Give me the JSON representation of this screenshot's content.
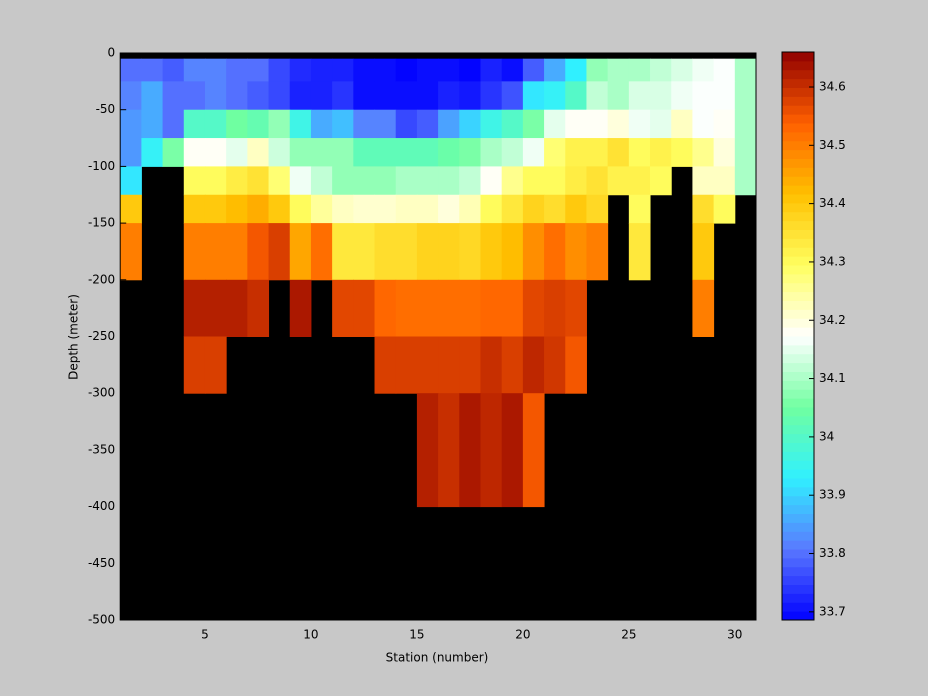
{
  "chart_data": {
    "type": "heatmap",
    "xlabel": "Station (number)",
    "ylabel": "Depth (meter)",
    "x_edges": [
      1,
      2,
      3,
      4,
      5,
      6,
      7,
      8,
      9,
      10,
      11,
      12,
      13,
      14,
      15,
      16,
      17,
      18,
      19,
      20,
      21,
      22,
      23,
      24,
      25,
      26,
      27,
      28,
      29,
      30,
      31
    ],
    "y_edges": [
      -5,
      -25,
      -50,
      -75,
      -100,
      -125,
      -150,
      -200,
      -250,
      -300,
      -400,
      -500
    ],
    "z": [
      [
        33.8,
        33.8,
        33.78,
        33.82,
        33.82,
        33.8,
        33.8,
        33.76,
        33.73,
        33.72,
        33.72,
        33.7,
        33.7,
        33.69,
        33.7,
        33.7,
        33.69,
        33.72,
        33.7,
        33.78,
        33.86,
        33.93,
        34.08,
        34.1,
        34.1,
        34.12,
        34.14,
        34.16,
        34.17,
        34.1
      ],
      [
        33.82,
        33.86,
        33.8,
        33.8,
        33.82,
        33.8,
        33.78,
        33.76,
        33.72,
        33.72,
        33.74,
        33.7,
        33.7,
        33.7,
        33.7,
        33.72,
        33.71,
        33.74,
        33.77,
        33.92,
        33.94,
        34.0,
        34.12,
        34.1,
        34.14,
        34.14,
        34.16,
        34.17,
        34.17,
        34.1
      ],
      [
        33.84,
        33.86,
        33.8,
        34.0,
        34.0,
        34.05,
        34.03,
        34.08,
        33.96,
        33.86,
        33.88,
        33.82,
        33.82,
        33.76,
        33.78,
        33.85,
        33.9,
        33.96,
        34.0,
        34.06,
        34.15,
        34.18,
        34.18,
        34.2,
        34.16,
        34.15,
        34.22,
        34.17,
        34.18,
        34.1
      ],
      [
        33.84,
        33.94,
        34.06,
        34.18,
        34.18,
        34.15,
        34.22,
        34.13,
        34.08,
        34.08,
        34.08,
        34.02,
        34.02,
        34.02,
        34.02,
        34.04,
        34.06,
        34.1,
        34.12,
        34.16,
        34.28,
        34.32,
        34.32,
        34.35,
        34.3,
        34.32,
        34.3,
        34.26,
        34.2,
        34.1
      ],
      [
        33.92,
        null,
        null,
        34.3,
        34.3,
        34.33,
        34.35,
        34.28,
        34.16,
        34.12,
        34.08,
        34.08,
        34.08,
        34.1,
        34.1,
        34.1,
        34.12,
        34.18,
        34.26,
        34.3,
        34.3,
        34.33,
        34.35,
        34.32,
        34.32,
        34.3,
        null,
        34.22,
        34.22,
        34.1
      ],
      [
        34.4,
        null,
        null,
        34.4,
        34.4,
        34.42,
        34.44,
        34.4,
        34.3,
        34.25,
        34.22,
        34.21,
        34.21,
        34.22,
        34.22,
        34.2,
        34.23,
        34.3,
        34.34,
        34.38,
        34.36,
        34.4,
        34.37,
        null,
        34.3,
        null,
        null,
        34.36,
        34.3,
        null
      ],
      [
        34.5,
        null,
        null,
        34.5,
        34.5,
        34.5,
        34.55,
        34.58,
        34.45,
        34.52,
        34.34,
        34.34,
        34.36,
        34.36,
        34.38,
        34.38,
        34.37,
        34.4,
        34.42,
        34.48,
        34.52,
        34.48,
        34.5,
        null,
        34.34,
        null,
        null,
        34.4,
        null,
        null
      ],
      [
        null,
        null,
        null,
        34.62,
        34.62,
        34.62,
        34.6,
        null,
        34.63,
        null,
        34.57,
        34.57,
        34.53,
        34.52,
        34.52,
        34.52,
        34.52,
        34.53,
        34.53,
        34.57,
        34.58,
        34.57,
        null,
        null,
        null,
        null,
        null,
        34.5,
        null,
        null
      ],
      [
        null,
        null,
        null,
        34.58,
        34.58,
        null,
        null,
        null,
        null,
        null,
        null,
        null,
        34.58,
        34.58,
        34.58,
        34.58,
        34.58,
        34.6,
        34.58,
        34.61,
        34.59,
        34.55,
        null,
        null,
        null,
        null,
        null,
        null,
        null,
        null
      ],
      [
        null,
        null,
        null,
        null,
        null,
        null,
        null,
        null,
        null,
        null,
        null,
        null,
        null,
        null,
        34.62,
        34.6,
        34.63,
        34.61,
        34.63,
        34.55,
        null,
        null,
        null,
        null,
        null,
        null,
        null,
        null,
        null,
        null
      ],
      [
        null,
        null,
        null,
        null,
        null,
        null,
        null,
        null,
        null,
        null,
        null,
        null,
        null,
        null,
        null,
        null,
        null,
        null,
        null,
        null,
        null,
        null,
        null,
        null,
        null,
        null,
        null,
        null,
        null,
        null
      ]
    ],
    "xlim": [
      1,
      31
    ],
    "xticks": [
      5,
      10,
      15,
      20,
      25,
      30
    ],
    "ylim": [
      -500,
      0
    ],
    "yticks": [
      -500,
      -450,
      -400,
      -350,
      -300,
      -250,
      -200,
      -150,
      -100,
      -50,
      0
    ],
    "clim": [
      33.686,
      34.66
    ],
    "cticks": [
      33.7,
      33.8,
      33.9,
      34,
      34.1,
      34.2,
      34.3,
      34.4,
      34.5,
      34.6
    ],
    "colormap": [
      "#0000ff",
      "#5a78ff",
      "#30f0ff",
      "#70ffa0",
      "#ffffff",
      "#ffff60",
      "#ffc000",
      "#ff6000",
      "#900000"
    ],
    "axes_color": "#000000"
  }
}
